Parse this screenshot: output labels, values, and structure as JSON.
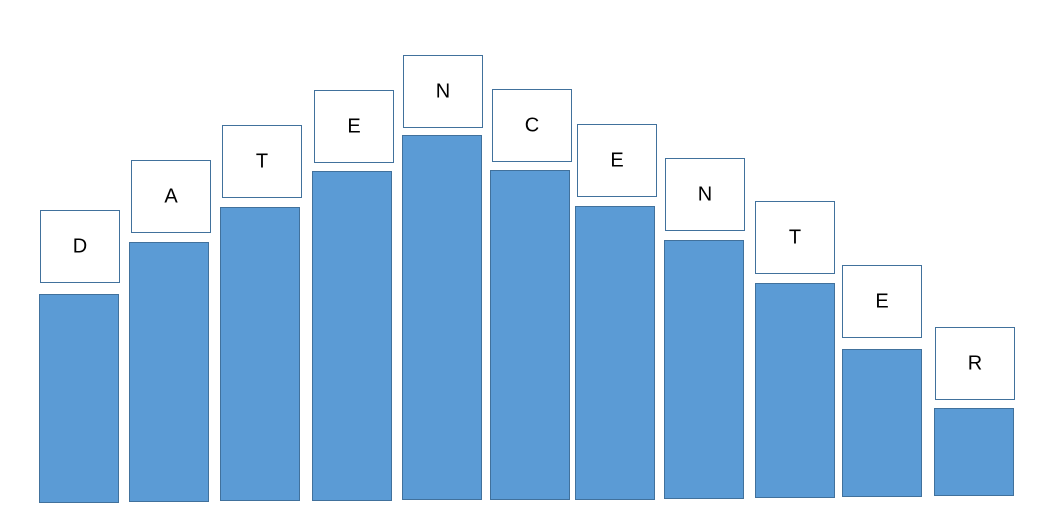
{
  "letters": [
    "D",
    "A",
    "T",
    "E",
    "N",
    "C",
    "E",
    "N",
    "T",
    "E",
    "R"
  ]
}
